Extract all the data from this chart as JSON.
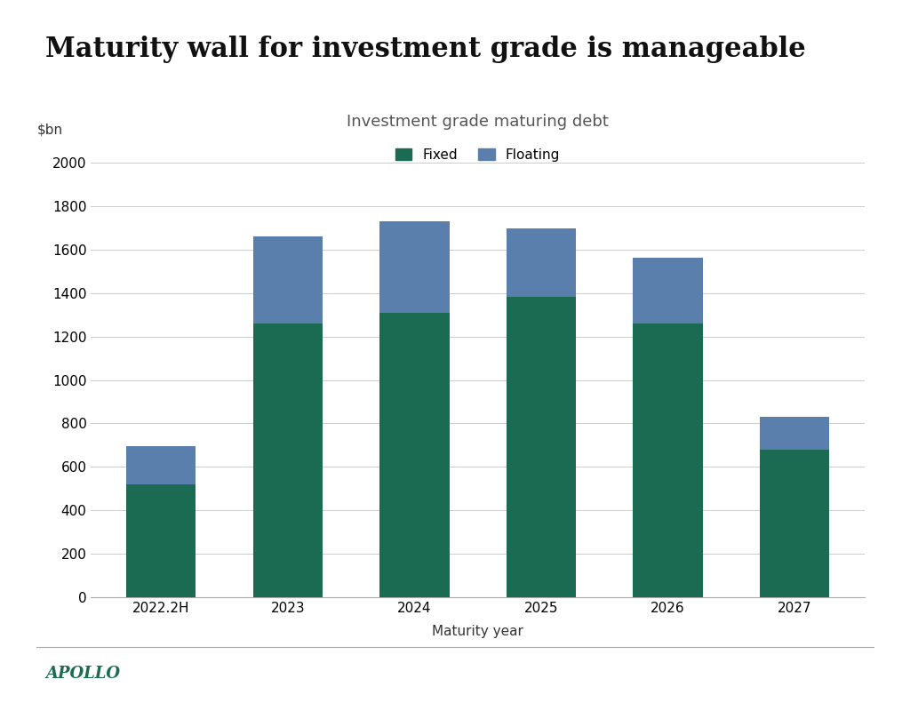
{
  "title": "Maturity wall for investment grade is manageable",
  "subtitle": "Investment grade maturing debt",
  "xlabel": "Maturity year",
  "ylabel": "$bn",
  "categories": [
    "2022.2H",
    "2023",
    "2024",
    "2025",
    "2026",
    "2027"
  ],
  "fixed_values": [
    520,
    1260,
    1310,
    1380,
    1260,
    680
  ],
  "floating_values": [
    175,
    400,
    420,
    315,
    300,
    150
  ],
  "fixed_color": "#1a6b52",
  "floating_color": "#5b7fad",
  "background_color": "#ffffff",
  "yticks": [
    0,
    200,
    400,
    600,
    800,
    1000,
    1200,
    1400,
    1600,
    1800,
    2000
  ],
  "ylim": [
    0,
    2100
  ],
  "bar_width": 0.55,
  "legend_labels": [
    "Fixed",
    "Floating"
  ],
  "apollo_text": "APOLLO",
  "title_fontsize": 22,
  "subtitle_fontsize": 13,
  "axis_label_fontsize": 11,
  "tick_fontsize": 11,
  "legend_fontsize": 11,
  "apollo_fontsize": 13
}
